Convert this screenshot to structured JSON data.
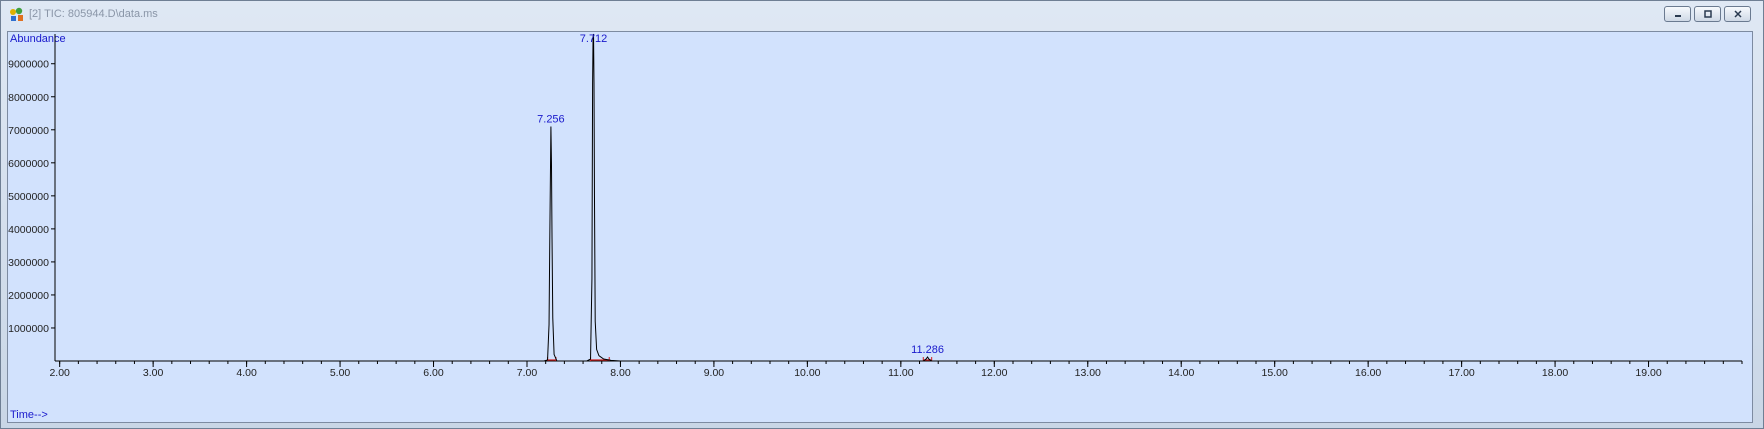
{
  "window": {
    "title": "[2] TIC: 805944.D\\data.ms",
    "icon": "chromatogram-app-icon",
    "controls": [
      "minimize-icon",
      "restore-icon",
      "close-icon"
    ]
  },
  "chart_data": {
    "type": "line",
    "ylabel": "Abundance",
    "xlabel": "Time-->",
    "xlim": [
      1.95,
      20.0
    ],
    "ylim": [
      0,
      9900000
    ],
    "x_ticks": [
      "2.00",
      "3.00",
      "4.00",
      "5.00",
      "6.00",
      "7.00",
      "8.00",
      "9.00",
      "10.00",
      "11.00",
      "12.00",
      "13.00",
      "14.00",
      "15.00",
      "16.00",
      "17.00",
      "18.00",
      "19.00"
    ],
    "y_ticks": [
      "1000000",
      "2000000",
      "3000000",
      "4000000",
      "5000000",
      "6000000",
      "7000000",
      "8000000",
      "9000000"
    ],
    "series": [
      {
        "x": [
          1.95,
          7.18,
          7.22,
          7.236,
          7.244,
          7.252,
          7.256,
          7.262,
          7.268,
          7.276,
          7.29,
          7.32,
          7.64,
          7.68,
          7.695,
          7.702,
          7.707,
          7.712,
          7.717,
          7.722,
          7.73,
          7.745,
          7.77,
          7.82,
          7.9,
          8.0,
          11.24,
          11.27,
          11.286,
          11.3,
          11.33,
          20.0
        ],
        "y": [
          0,
          0,
          30000,
          1100000,
          3700000,
          6000000,
          7100000,
          6000000,
          3700000,
          1300000,
          200000,
          0,
          0,
          60000,
          2500000,
          8400000,
          9800000,
          9900000,
          8400000,
          5000000,
          1200000,
          350000,
          160000,
          60000,
          20000,
          0,
          0,
          60000,
          120000,
          60000,
          0,
          0
        ]
      }
    ],
    "peak_labels": [
      {
        "x": 7.256,
        "y": 7100000,
        "label": "7.256"
      },
      {
        "x": 7.712,
        "y": 9900000,
        "label": "7.712"
      },
      {
        "x": 11.286,
        "y": 120000,
        "label": "11.286"
      }
    ],
    "integration_marks": [
      {
        "start": 7.22,
        "end": 7.31
      },
      {
        "start": 7.68,
        "end": 7.88
      },
      {
        "start": 11.24,
        "end": 11.33
      }
    ],
    "colors": {
      "trace": "#000000",
      "integration": "#d12020",
      "peak_label": "#1a1acc",
      "plot_background": "#d2e2fd"
    }
  }
}
